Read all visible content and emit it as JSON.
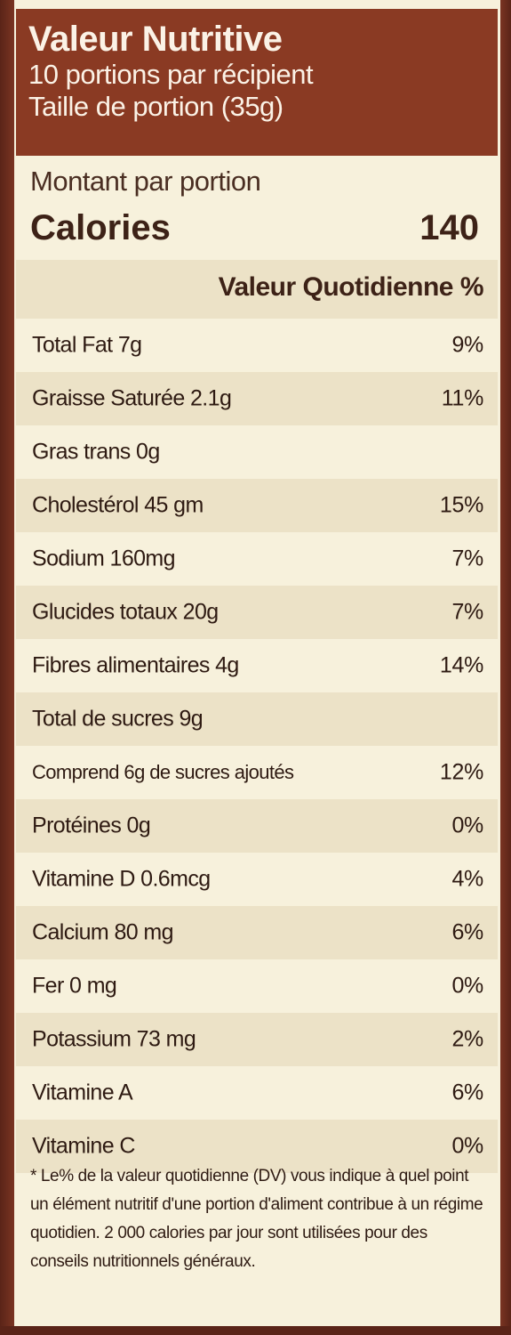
{
  "header": {
    "title": "Valeur Nutritive",
    "servings": "10 portions par récipient",
    "serving_size": "Taille de portion (35g)"
  },
  "amount_per_serving": "Montant par portion",
  "calories": {
    "label": "Calories",
    "value": "140"
  },
  "dv_header": "Valeur Quotidienne %",
  "nutrients": [
    {
      "name": "Total Fat 7g",
      "dv": "9%"
    },
    {
      "name": "Graisse Saturée 2.1g",
      "dv": "11%"
    },
    {
      "name": "Gras trans 0g",
      "dv": ""
    },
    {
      "name": "Cholestérol  45 gm",
      "dv": "15%"
    },
    {
      "name": "Sodium 160mg",
      "dv": "7%"
    },
    {
      "name": "Glucides totaux 20g",
      "dv": "7%"
    },
    {
      "name": "Fibres alimentaires 4g",
      "dv": "14%"
    },
    {
      "name": "Total de sucres 9g",
      "dv": ""
    },
    {
      "name": "Comprend 6g de sucres ajoutés",
      "dv": "12%"
    },
    {
      "name": "Protéines 0g",
      "dv": "0%"
    },
    {
      "name": "Vitamine D 0.6mcg",
      "dv": "4%"
    },
    {
      "name": "Calcium 80 mg",
      "dv": "6%"
    },
    {
      "name": "Fer 0 mg",
      "dv": "0%"
    },
    {
      "name": "Potassium 73 mg",
      "dv": "2%"
    },
    {
      "name": "Vitamine  A",
      "dv": "6%"
    },
    {
      "name": "Vitamine  C",
      "dv": "0%"
    }
  ],
  "footnote": "* Le% de la valeur quotidienne (DV) vous indique à quel point un élément nutritif d'une portion d'aliment contribue à un régime quotidien. 2 000 calories par jour sont utilisées pour des conseils nutritionnels généraux.",
  "colors": {
    "header_bg": "#8a3a23",
    "label_bg": "#f7f1dc",
    "row_shade": "#ece2c7",
    "text": "#2e1a12"
  }
}
